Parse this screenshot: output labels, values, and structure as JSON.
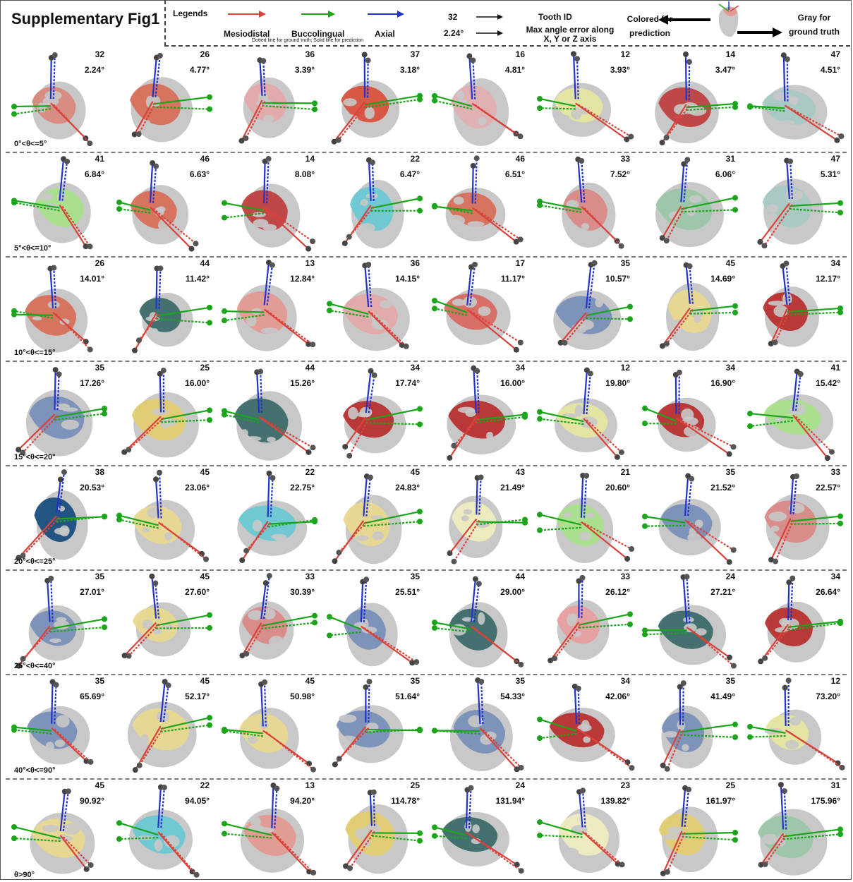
{
  "title": "Supplementary Fig1",
  "legend": {
    "heading": "Legends",
    "mesiodistal": "Mesiodistal",
    "buccolingual": "Buccolingual",
    "axial": "Axial",
    "note": "Dotted line for ground truth; Solid line for prediction",
    "tooth_id_example": "32",
    "tooth_id_label": "Tooth ID",
    "angle_example": "2.24°",
    "angle_label": "Max angle error along X, Y or Z axis",
    "colored_label": "Colored for prediction",
    "gray_label": "Gray for ground truth",
    "colors": {
      "mesiodistal": "#d9423a",
      "buccolingual": "#1aa51a",
      "axial": "#2233cc",
      "ground_truth": "#c8c8c8"
    }
  },
  "rows": [
    {
      "range": "0°<θ<=5°",
      "cells": [
        {
          "id": "32",
          "angle": "2.24°",
          "color": "#d98a80"
        },
        {
          "id": "26",
          "angle": "4.77°",
          "color": "#d8705a"
        },
        {
          "id": "36",
          "angle": "3.39°",
          "color": "#e3aaaa"
        },
        {
          "id": "37",
          "angle": "3.18°",
          "color": "#d9523e"
        },
        {
          "id": "16",
          "angle": "4.81°",
          "color": "#e0b0b2"
        },
        {
          "id": "12",
          "angle": "3.93°",
          "color": "#e6e6a0"
        },
        {
          "id": "14",
          "angle": "3.47°",
          "color": "#c04040"
        },
        {
          "id": "47",
          "angle": "4.51°",
          "color": "#a9c9c4"
        }
      ]
    },
    {
      "range": "5°<θ<=10°",
      "cells": [
        {
          "id": "41",
          "angle": "6.84°",
          "color": "#a8e08a"
        },
        {
          "id": "46",
          "angle": "6.63°",
          "color": "#d8705a"
        },
        {
          "id": "14",
          "angle": "8.08°",
          "color": "#c04040"
        },
        {
          "id": "22",
          "angle": "6.47°",
          "color": "#6cc8d4"
        },
        {
          "id": "46",
          "angle": "6.51°",
          "color": "#d8705a"
        },
        {
          "id": "33",
          "angle": "7.52°",
          "color": "#d98a88"
        },
        {
          "id": "31",
          "angle": "6.06°",
          "color": "#9cc7a8"
        },
        {
          "id": "47",
          "angle": "5.31°",
          "color": "#a9c9c4"
        }
      ]
    },
    {
      "range": "10°<θ<=15°",
      "cells": [
        {
          "id": "26",
          "angle": "14.01°",
          "color": "#d8705a"
        },
        {
          "id": "44",
          "angle": "11.42°",
          "color": "#3d6b6b"
        },
        {
          "id": "13",
          "angle": "12.84°",
          "color": "#e39a94"
        },
        {
          "id": "36",
          "angle": "14.15°",
          "color": "#e3aaaa"
        },
        {
          "id": "17",
          "angle": "11.17°",
          "color": "#d96a62"
        },
        {
          "id": "35",
          "angle": "10.57°",
          "color": "#7a90b8"
        },
        {
          "id": "45",
          "angle": "14.69°",
          "color": "#e8d890"
        },
        {
          "id": "34",
          "angle": "12.17°",
          "color": "#b83232"
        }
      ]
    },
    {
      "range": "15°<θ<=20°",
      "cells": [
        {
          "id": "35",
          "angle": "17.26°",
          "color": "#7a90b8"
        },
        {
          "id": "25",
          "angle": "16.00°",
          "color": "#e0cc70"
        },
        {
          "id": "44",
          "angle": "15.26°",
          "color": "#3d6b6b"
        },
        {
          "id": "34",
          "angle": "17.74°",
          "color": "#b83232"
        },
        {
          "id": "34",
          "angle": "16.00°",
          "color": "#b83232"
        },
        {
          "id": "12",
          "angle": "19.80°",
          "color": "#e6e6a0"
        },
        {
          "id": "34",
          "angle": "16.90°",
          "color": "#b83232"
        },
        {
          "id": "41",
          "angle": "15.42°",
          "color": "#a8e08a"
        }
      ]
    },
    {
      "range": "20°<θ<=25°",
      "cells": [
        {
          "id": "38",
          "angle": "20.53°",
          "color": "#1a4f80"
        },
        {
          "id": "45",
          "angle": "23.06°",
          "color": "#e8d890"
        },
        {
          "id": "22",
          "angle": "22.75°",
          "color": "#6cc8d4"
        },
        {
          "id": "45",
          "angle": "24.83°",
          "color": "#e8d890"
        },
        {
          "id": "43",
          "angle": "21.49°",
          "color": "#f0ecc0"
        },
        {
          "id": "21",
          "angle": "20.60°",
          "color": "#a8e08a"
        },
        {
          "id": "35",
          "angle": "21.52°",
          "color": "#7a90b8"
        },
        {
          "id": "33",
          "angle": "22.57°",
          "color": "#d98a88"
        }
      ]
    },
    {
      "range": "25°<θ<=40°",
      "cells": [
        {
          "id": "35",
          "angle": "27.01°",
          "color": "#7a90b8"
        },
        {
          "id": "45",
          "angle": "27.60°",
          "color": "#e8d890"
        },
        {
          "id": "33",
          "angle": "30.39°",
          "color": "#d98a88"
        },
        {
          "id": "35",
          "angle": "25.51°",
          "color": "#7a90b8"
        },
        {
          "id": "44",
          "angle": "29.00°",
          "color": "#3d6b6b"
        },
        {
          "id": "33",
          "angle": "26.12°",
          "color": "#e8a0a0"
        },
        {
          "id": "24",
          "angle": "27.21°",
          "color": "#3d6b6b"
        },
        {
          "id": "34",
          "angle": "26.64°",
          "color": "#b83232"
        }
      ]
    },
    {
      "range": "40°<θ<=90°",
      "cells": [
        {
          "id": "35",
          "angle": "65.69°",
          "color": "#7a90b8"
        },
        {
          "id": "45",
          "angle": "52.17°",
          "color": "#e8d890"
        },
        {
          "id": "45",
          "angle": "50.98°",
          "color": "#e8d890"
        },
        {
          "id": "35",
          "angle": "51.64°",
          "color": "#7a90b8"
        },
        {
          "id": "35",
          "angle": "54.33°",
          "color": "#7a90b8"
        },
        {
          "id": "34",
          "angle": "42.06°",
          "color": "#b83232"
        },
        {
          "id": "35",
          "angle": "41.49°",
          "color": "#7a90b8"
        },
        {
          "id": "12",
          "angle": "73.20°",
          "color": "#e6e6a0"
        }
      ]
    },
    {
      "range": "θ>90°",
      "cells": [
        {
          "id": "45",
          "angle": "90.92°",
          "color": "#e8d890"
        },
        {
          "id": "22",
          "angle": "94.05°",
          "color": "#6cc8d4"
        },
        {
          "id": "13",
          "angle": "94.20°",
          "color": "#e39a94"
        },
        {
          "id": "25",
          "angle": "114.78°",
          "color": "#e0cc70"
        },
        {
          "id": "24",
          "angle": "131.94°",
          "color": "#3d6b6b"
        },
        {
          "id": "23",
          "angle": "139.82°",
          "color": "#f0ecc0"
        },
        {
          "id": "25",
          "angle": "161.97°",
          "color": "#e0cc70"
        },
        {
          "id": "31",
          "angle": "175.96°",
          "color": "#9cc7a8"
        }
      ]
    }
  ]
}
